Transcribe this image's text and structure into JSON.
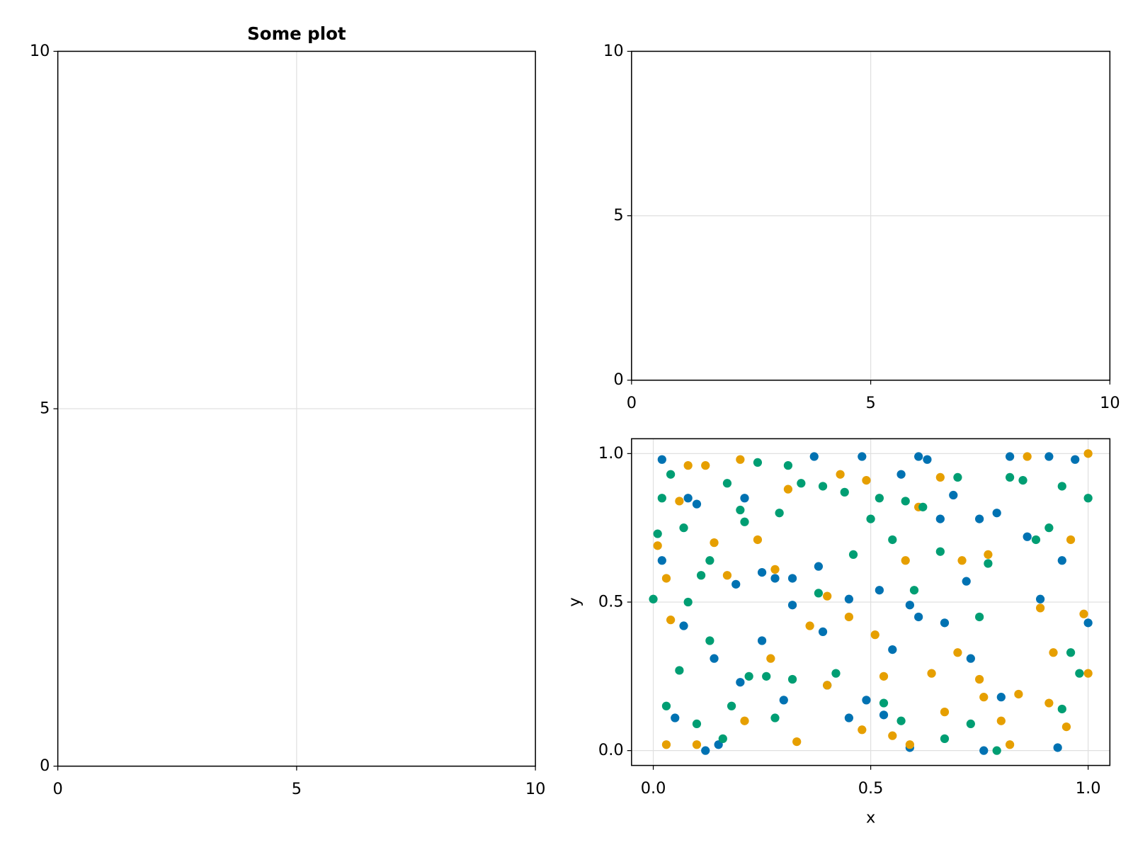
{
  "chart_data": [
    {
      "type": "scatter",
      "title": "Some plot",
      "xlim": [
        0,
        10
      ],
      "ylim": [
        0,
        10
      ],
      "xticks": [
        0,
        5,
        10
      ],
      "yticks": [
        0,
        5,
        10
      ],
      "grid": true
    },
    {
      "type": "scatter",
      "xlim": [
        0,
        10
      ],
      "ylim": [
        0,
        10
      ],
      "xticks": [
        0,
        5,
        10
      ],
      "yticks": [
        0,
        5,
        10
      ],
      "grid": true
    },
    {
      "type": "scatter",
      "x_label": "x",
      "y_label": "y",
      "xlim": [
        -0.05,
        1.05
      ],
      "ylim": [
        -0.05,
        1.05
      ],
      "xticks": [
        {
          "value": 0,
          "label": "0.0"
        },
        {
          "value": 0.5,
          "label": "0.5"
        },
        {
          "value": 1,
          "label": "1.0"
        }
      ],
      "yticks": [
        {
          "value": 0,
          "label": "0.0"
        },
        {
          "value": 0.5,
          "label": "0.5"
        },
        {
          "value": 1,
          "label": "1.0"
        }
      ],
      "grid": true,
      "series": [
        {
          "color": "#0072b2",
          "x": [
            0.02,
            0.02,
            0.05,
            0.07,
            0.08,
            0.1,
            0.12,
            0.14,
            0.15,
            0.19,
            0.2,
            0.21,
            0.25,
            0.25,
            0.28,
            0.3,
            0.32,
            0.32,
            0.37,
            0.38,
            0.39,
            0.4,
            0.45,
            0.45,
            0.48,
            0.49,
            0.52,
            0.53,
            0.55,
            0.57,
            0.59,
            0.59,
            0.61,
            0.61,
            0.63,
            0.66,
            0.67,
            0.69,
            0.72,
            0.73,
            0.75,
            0.76,
            0.79,
            0.8,
            0.82,
            0.86,
            0.89,
            0.91,
            0.93,
            0.94,
            0.97,
            1.0
          ],
          "values": [
            0.98,
            0.64,
            0.11,
            0.42,
            0.85,
            0.83,
            0.0,
            0.31,
            0.02,
            0.56,
            0.23,
            0.85,
            0.6,
            0.37,
            0.58,
            0.17,
            0.58,
            0.49,
            0.99,
            0.62,
            0.4,
            0.22,
            0.11,
            0.51,
            0.99,
            0.17,
            0.54,
            0.12,
            0.34,
            0.93,
            0.49,
            0.01,
            0.99,
            0.45,
            0.98,
            0.78,
            0.43,
            0.86,
            0.57,
            0.31,
            0.78,
            0.0,
            0.8,
            0.18,
            0.99,
            0.72,
            0.51,
            0.99,
            0.01,
            0.64,
            0.98,
            0.43
          ]
        },
        {
          "color": "#e69f00",
          "x": [
            0.01,
            0.03,
            0.03,
            0.04,
            0.06,
            0.08,
            0.1,
            0.12,
            0.14,
            0.17,
            0.2,
            0.21,
            0.24,
            0.27,
            0.28,
            0.31,
            0.33,
            0.36,
            0.4,
            0.4,
            0.43,
            0.45,
            0.48,
            0.49,
            0.51,
            0.53,
            0.55,
            0.58,
            0.59,
            0.61,
            0.64,
            0.66,
            0.67,
            0.7,
            0.71,
            0.75,
            0.76,
            0.77,
            0.8,
            0.82,
            0.84,
            0.86,
            0.89,
            0.91,
            0.92,
            0.95,
            0.96,
            0.99,
            1.0,
            1.0
          ],
          "values": [
            0.69,
            0.02,
            0.58,
            0.44,
            0.84,
            0.96,
            0.02,
            0.96,
            0.7,
            0.59,
            0.98,
            0.1,
            0.71,
            0.31,
            0.61,
            0.88,
            0.03,
            0.42,
            0.52,
            0.22,
            0.93,
            0.45,
            0.07,
            0.91,
            0.39,
            0.25,
            0.05,
            0.64,
            0.02,
            0.82,
            0.26,
            0.92,
            0.13,
            0.33,
            0.64,
            0.24,
            0.18,
            0.66,
            0.1,
            0.02,
            0.19,
            0.99,
            0.48,
            0.16,
            0.33,
            0.08,
            0.71,
            0.46,
            0.26,
            1.0
          ]
        },
        {
          "color": "#009e73",
          "x": [
            0.0,
            0.01,
            0.02,
            0.03,
            0.04,
            0.06,
            0.07,
            0.08,
            0.1,
            0.11,
            0.13,
            0.13,
            0.16,
            0.17,
            0.18,
            0.2,
            0.21,
            0.22,
            0.24,
            0.26,
            0.28,
            0.29,
            0.31,
            0.32,
            0.34,
            0.38,
            0.39,
            0.42,
            0.44,
            0.46,
            0.5,
            0.52,
            0.53,
            0.55,
            0.57,
            0.58,
            0.6,
            0.62,
            0.66,
            0.67,
            0.7,
            0.73,
            0.75,
            0.77,
            0.79,
            0.82,
            0.85,
            0.88,
            0.91,
            0.94,
            0.94,
            0.96,
            0.98,
            1.0
          ],
          "values": [
            0.51,
            0.73,
            0.85,
            0.15,
            0.93,
            0.27,
            0.75,
            0.5,
            0.09,
            0.59,
            0.37,
            0.64,
            0.04,
            0.9,
            0.15,
            0.81,
            0.77,
            0.25,
            0.97,
            0.25,
            0.11,
            0.8,
            0.96,
            0.24,
            0.9,
            0.53,
            0.89,
            0.26,
            0.87,
            0.66,
            0.78,
            0.85,
            0.16,
            0.71,
            0.1,
            0.84,
            0.54,
            0.82,
            0.67,
            0.04,
            0.92,
            0.09,
            0.45,
            0.63,
            0.0,
            0.92,
            0.91,
            0.71,
            0.75,
            0.14,
            0.89,
            0.33,
            0.26,
            0.85
          ]
        }
      ]
    }
  ]
}
